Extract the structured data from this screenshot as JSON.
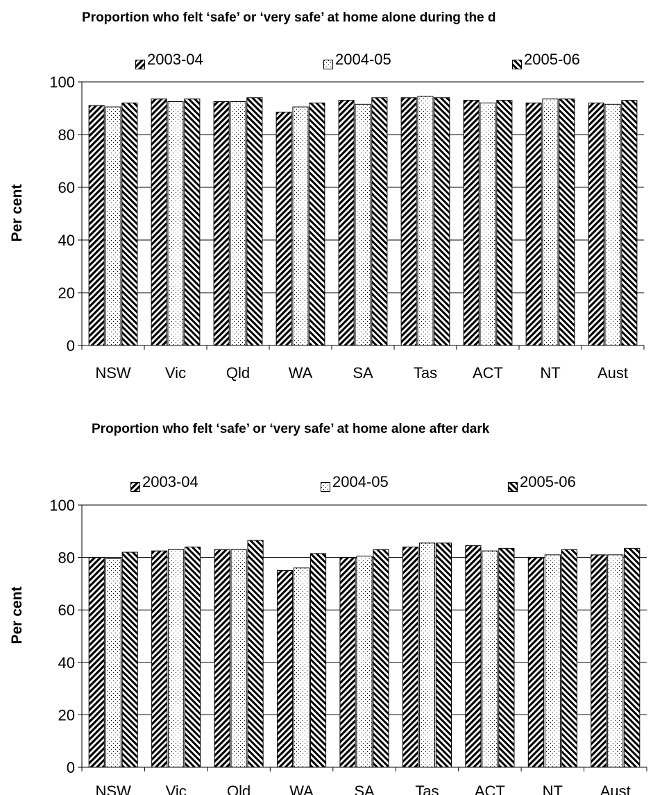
{
  "chart_data": [
    {
      "type": "bar",
      "title": "Proportion who felt ‘safe’ or ‘very safe’ at home alone during the d",
      "ylabel": "Per cent",
      "xlabel": "",
      "ylim": [
        0,
        100
      ],
      "yticks": [
        0,
        20,
        40,
        60,
        80,
        100
      ],
      "grid": true,
      "legend_position": "top",
      "categories": [
        "NSW",
        "Vic",
        "Qld",
        "WA",
        "SA",
        "Tas",
        "ACT",
        "NT",
        "Aust"
      ],
      "series": [
        {
          "name": "2003-04",
          "values": [
            91,
            93.5,
            92.5,
            88.5,
            93,
            94,
            93,
            92,
            92
          ]
        },
        {
          "name": "2004-05",
          "values": [
            90.5,
            92.5,
            92.5,
            90.5,
            91.5,
            94.5,
            92,
            93.5,
            91.5
          ]
        },
        {
          "name": "2005-06",
          "values": [
            92,
            93.5,
            94,
            92,
            94,
            94,
            93,
            93.5,
            93
          ]
        }
      ]
    },
    {
      "type": "bar",
      "title": "Proportion who felt ‘safe’ or ‘very safe’ at home alone after dark",
      "ylabel": "Per cent",
      "xlabel": "",
      "ylim": [
        0,
        100
      ],
      "yticks": [
        0,
        20,
        40,
        60,
        80,
        100
      ],
      "grid": true,
      "legend_position": "top",
      "categories": [
        "NSW",
        "Vic",
        "Qld",
        "WA",
        "SA",
        "Tas",
        "ACT",
        "NT",
        "Aust"
      ],
      "series": [
        {
          "name": "2003-04",
          "values": [
            80,
            82.5,
            83,
            75,
            80,
            84,
            84.5,
            80,
            81
          ]
        },
        {
          "name": "2004-05",
          "values": [
            79.5,
            83,
            83,
            76,
            80.5,
            85.5,
            82.5,
            81,
            81
          ]
        },
        {
          "name": "2005-06",
          "values": [
            82,
            84,
            86.5,
            81.5,
            83,
            85.5,
            83.5,
            83,
            83.5
          ]
        }
      ]
    }
  ]
}
